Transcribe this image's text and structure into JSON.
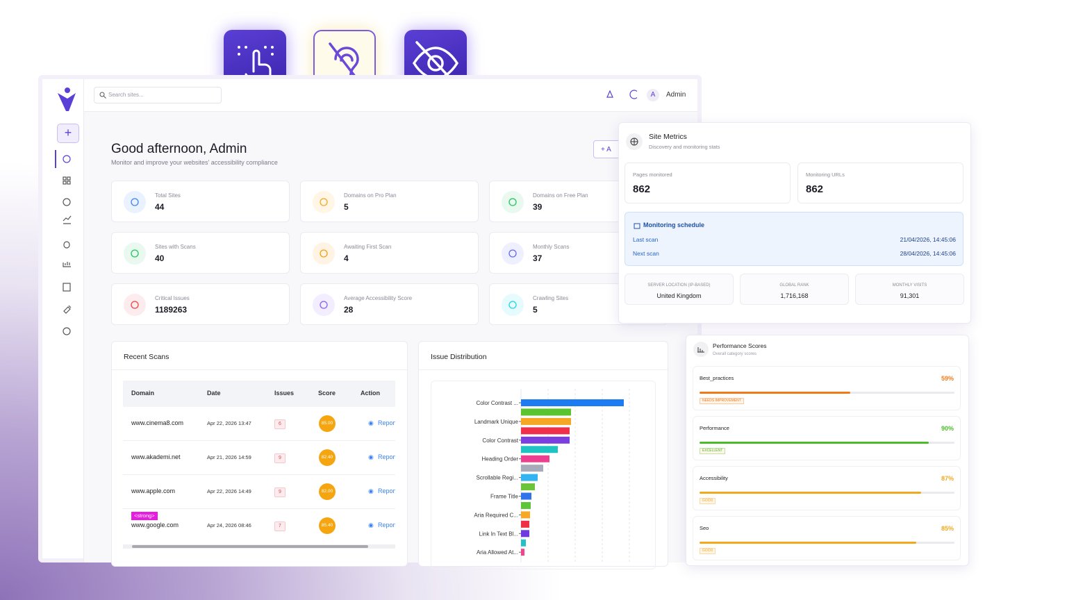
{
  "header": {
    "search_placeholder": "Search sites...",
    "avatar": "A",
    "user": "Admin"
  },
  "greeting": {
    "title": "Good afternoon, Admin",
    "subtitle": "Monitor and improve your websites' accessibility compliance",
    "button": "A"
  },
  "stats": [
    {
      "label": "Total Sites",
      "value": "44"
    },
    {
      "label": "Domains on Pro Plan",
      "value": "5"
    },
    {
      "label": "Domains on Free Plan",
      "value": "39"
    },
    {
      "label": "Sites with Scans",
      "value": "40"
    },
    {
      "label": "Awaiting First Scan",
      "value": "4"
    },
    {
      "label": "Monthly Scans",
      "value": "37"
    },
    {
      "label": "Critical Issues",
      "value": "1189263"
    },
    {
      "label": "Average Accessibility Score",
      "value": "28"
    },
    {
      "label": "Crawling Sites",
      "value": "5"
    }
  ],
  "recent_scans": {
    "title": "Recent Scans",
    "columns": [
      "Domain",
      "Date",
      "Issues",
      "Score",
      "Action"
    ],
    "rows": [
      [
        "www.cinema8.com",
        "Apr 22, 2026 13:47",
        "6",
        "85.00",
        "Report"
      ],
      [
        "www.akademi.net",
        "Apr 21, 2026 14:59",
        "9",
        "82.40",
        "Report"
      ],
      [
        "www.apple.com",
        "Apr 22, 2026 14:49",
        "9",
        "82.00",
        "Report"
      ],
      [
        "www.google.com",
        "Apr 24, 2026 08:46",
        "7",
        "85.40",
        "Report"
      ]
    ],
    "tag": "<strong>"
  },
  "issue_distribution": {
    "type": "bar",
    "title": "Issue Distribution",
    "categories": [
      "Color Contrast ...",
      null,
      "Landmark Unique",
      null,
      "Color Contrast",
      null,
      "Heading Order",
      null,
      "Scrollable Regi...",
      null,
      "Frame Title",
      null,
      "Aria Required C...",
      null,
      "Link In Text Bl...",
      null,
      "Aria Allowed At..."
    ],
    "values": [
      148,
      72,
      72,
      70,
      70,
      53,
      41,
      32,
      24,
      20,
      15,
      14,
      13,
      12,
      12,
      7,
      5
    ],
    "colors": [
      "#1e7cf2",
      "#5ac42e",
      "#f5a623",
      "#f0304a",
      "#7b3fe0",
      "#1fc3c3",
      "#ec3f8f",
      "#a7aab8",
      "#32b4f0",
      "#6cc43a",
      "#2f74ea",
      "#5ec53a",
      "#f7a825",
      "#ef2f45",
      "#6d3be0",
      "#25c0c8",
      "#ee4590"
    ],
    "xlim": [
      0,
      156
    ],
    "xgrid": [
      0,
      39,
      78,
      117,
      156
    ]
  },
  "site_metrics": {
    "title": "Site Metrics",
    "subtitle": "Discovery and monitoring stats",
    "boxes": [
      {
        "label": "Pages monitored",
        "value": "862"
      },
      {
        "label": "Monitoring URLs",
        "value": "862"
      }
    ],
    "schedule": {
      "title": "Monitoring schedule",
      "rows": [
        {
          "label": "Last scan",
          "value": "21/04/2026, 14:45:06"
        },
        {
          "label": "Next scan",
          "value": "28/04/2026, 14:45:06"
        }
      ]
    },
    "info": [
      {
        "label": "SERVER LOCATION (IP-BASED)",
        "value": "United Kingdom"
      },
      {
        "label": "GLOBAL RANK",
        "value": "1,716,168"
      },
      {
        "label": "MONTHLY VISITS",
        "value": "91,301"
      }
    ]
  },
  "performance": {
    "title": "Performance Scores",
    "subtitle": "Overall category scores",
    "items": [
      {
        "name": "Best_practices",
        "score": {
          "value": 59,
          "label": "59%"
        },
        "status": "NEEDS IMPROVEMENT",
        "color": "#f07a1a"
      },
      {
        "name": "Performance",
        "score": {
          "value": 90,
          "label": "90%"
        },
        "status": "EXCELLENT",
        "color": "#4cbb2a"
      },
      {
        "name": "Accessibility",
        "score": {
          "value": 87,
          "label": "87%"
        },
        "status": "GOOD",
        "color": "#f0a81c"
      },
      {
        "name": "Seo",
        "score": {
          "value": 85,
          "label": "85%"
        },
        "status": "GOOD",
        "color": "#f0a81c"
      }
    ]
  }
}
